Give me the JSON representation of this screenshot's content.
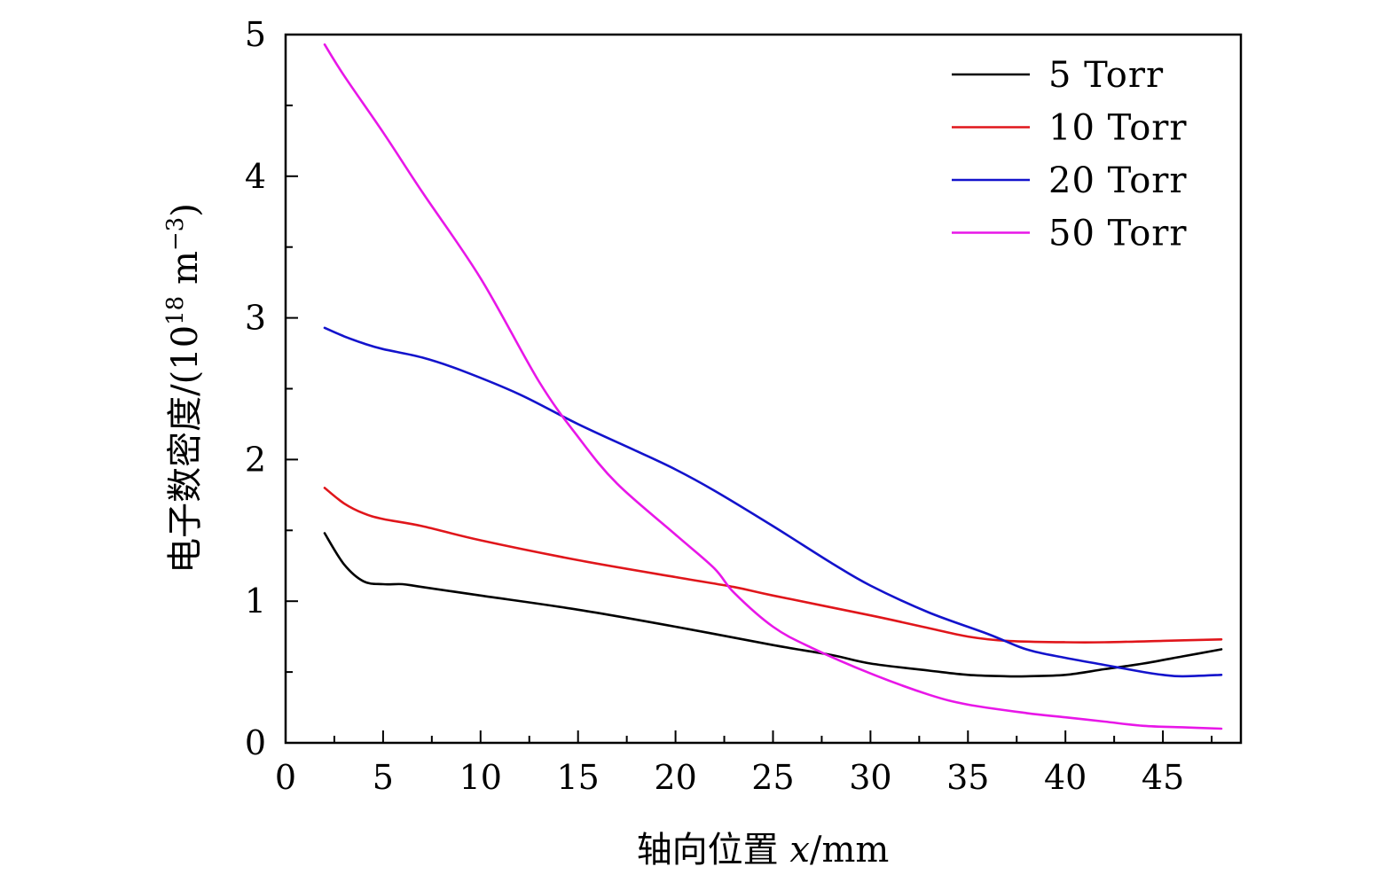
{
  "chart_data": {
    "type": "line",
    "title": "",
    "xlabel": {
      "prefix": "轴向位置 ",
      "var": "x",
      "suffix": "/mm"
    },
    "ylabel": {
      "main": "电子数密度/(10",
      "exp": "18",
      "mid": " m",
      "exp2": "−3",
      "end": ")"
    },
    "xlim": [
      0,
      49
    ],
    "ylim": [
      0,
      5
    ],
    "xticks": [
      0,
      5,
      10,
      15,
      20,
      25,
      30,
      35,
      40,
      45
    ],
    "yticks": [
      0,
      1,
      2,
      3,
      4,
      5
    ],
    "grid": false,
    "legend_position": "top-right",
    "series": [
      {
        "name": "5 Torr",
        "color": "#000000",
        "x": [
          2,
          3,
          4,
          5,
          6,
          7,
          10,
          15,
          20,
          25,
          28,
          30,
          33,
          35,
          37,
          38,
          40,
          42,
          44,
          46,
          48
        ],
        "y": [
          1.48,
          1.26,
          1.14,
          1.12,
          1.12,
          1.1,
          1.04,
          0.94,
          0.82,
          0.69,
          0.62,
          0.56,
          0.51,
          0.48,
          0.47,
          0.47,
          0.48,
          0.52,
          0.56,
          0.61,
          0.66
        ]
      },
      {
        "name": "10 Torr",
        "color": "#e0161b",
        "x": [
          2,
          3,
          4,
          5,
          7,
          10,
          15,
          20,
          23,
          25,
          30,
          33,
          35,
          37,
          40,
          42,
          45,
          48
        ],
        "y": [
          1.8,
          1.69,
          1.62,
          1.58,
          1.53,
          1.43,
          1.29,
          1.17,
          1.1,
          1.04,
          0.9,
          0.81,
          0.75,
          0.72,
          0.71,
          0.71,
          0.72,
          0.73
        ]
      },
      {
        "name": "20 Torr",
        "color": "#1313cc",
        "x": [
          2,
          3,
          4,
          5,
          7,
          9,
          12,
          15,
          18,
          20,
          22,
          25,
          28,
          30,
          33,
          36,
          38,
          40,
          42,
          44,
          45,
          46,
          48
        ],
        "y": [
          2.93,
          2.87,
          2.82,
          2.78,
          2.72,
          2.63,
          2.46,
          2.25,
          2.06,
          1.93,
          1.78,
          1.53,
          1.27,
          1.11,
          0.92,
          0.77,
          0.66,
          0.6,
          0.55,
          0.5,
          0.48,
          0.47,
          0.48
        ]
      },
      {
        "name": "50 Torr",
        "color": "#e817e8",
        "x": [
          2,
          3,
          5,
          7,
          10,
          13,
          15,
          17,
          20,
          22,
          23,
          25,
          27,
          30,
          33,
          35,
          38,
          40,
          42,
          44,
          46,
          48
        ],
        "y": [
          4.93,
          4.71,
          4.31,
          3.89,
          3.28,
          2.55,
          2.16,
          1.83,
          1.47,
          1.23,
          1.06,
          0.82,
          0.67,
          0.49,
          0.34,
          0.27,
          0.21,
          0.18,
          0.15,
          0.12,
          0.11,
          0.1
        ]
      }
    ]
  }
}
